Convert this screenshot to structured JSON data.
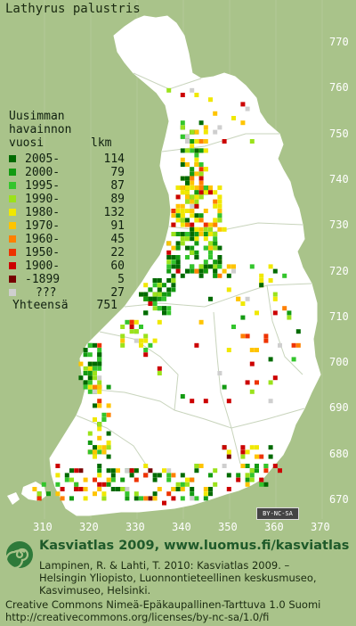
{
  "title": "Lathyrus palustris",
  "legend": {
    "heading_lines": [
      "Uusimman",
      "havainnon"
    ],
    "col_period": "vuosi",
    "col_count": "lkm",
    "items": [
      {
        "label": "2005-",
        "count": "114",
        "color": "#006a00"
      },
      {
        "label": "2000-",
        "count": "79",
        "color": "#139b12"
      },
      {
        "label": "1995-",
        "count": "87",
        "color": "#33c52c"
      },
      {
        "label": "1990-",
        "count": "89",
        "color": "#9be21b"
      },
      {
        "label": "1980-",
        "count": "132",
        "color": "#f0e800"
      },
      {
        "label": "1970-",
        "count": "91",
        "color": "#ffc400"
      },
      {
        "label": "1960-",
        "count": "45",
        "color": "#ff8000"
      },
      {
        "label": "1950-",
        "count": "22",
        "color": "#ee3300"
      },
      {
        "label": "1900-",
        "count": "60",
        "color": "#cc0000"
      },
      {
        "label": "-1899",
        "count": "5",
        "color": "#770000"
      },
      {
        "label": "???",
        "count": "27",
        "color": "#cfcfcf"
      }
    ],
    "total_label": "Yhteensä",
    "total_count": "751"
  },
  "grid": {
    "y_ticks": [
      "770",
      "760",
      "750",
      "740",
      "730",
      "720",
      "710",
      "700",
      "690",
      "680",
      "670"
    ],
    "x_ticks": [
      "310",
      "320",
      "330",
      "340",
      "350",
      "360",
      "370"
    ]
  },
  "license_badge": "BY-NC-SA",
  "footer": {
    "brand": "Kasviatlas 2009, www.luomus.fi/kasviatlas",
    "citation": [
      "Lampinen, R. & Lahti, T. 2010: Kasviatlas 2009. –",
      "Helsingin Yliopisto, Luonnontieteellinen keskusmuseo,",
      "Kasvimuseo, Helsinki."
    ],
    "license": [
      "Creative Commons Nimeä-Epäkaupallinen-Tarttuva 1.0 Suomi",
      "http://creativecommons.org/licenses/by-nc-sa/1.0/fi"
    ]
  },
  "colors": {
    "background": "#a9c38a",
    "land": "#ffffff",
    "boundaries": "#c8d4bc",
    "brand_text": "#1f5a2a"
  }
}
